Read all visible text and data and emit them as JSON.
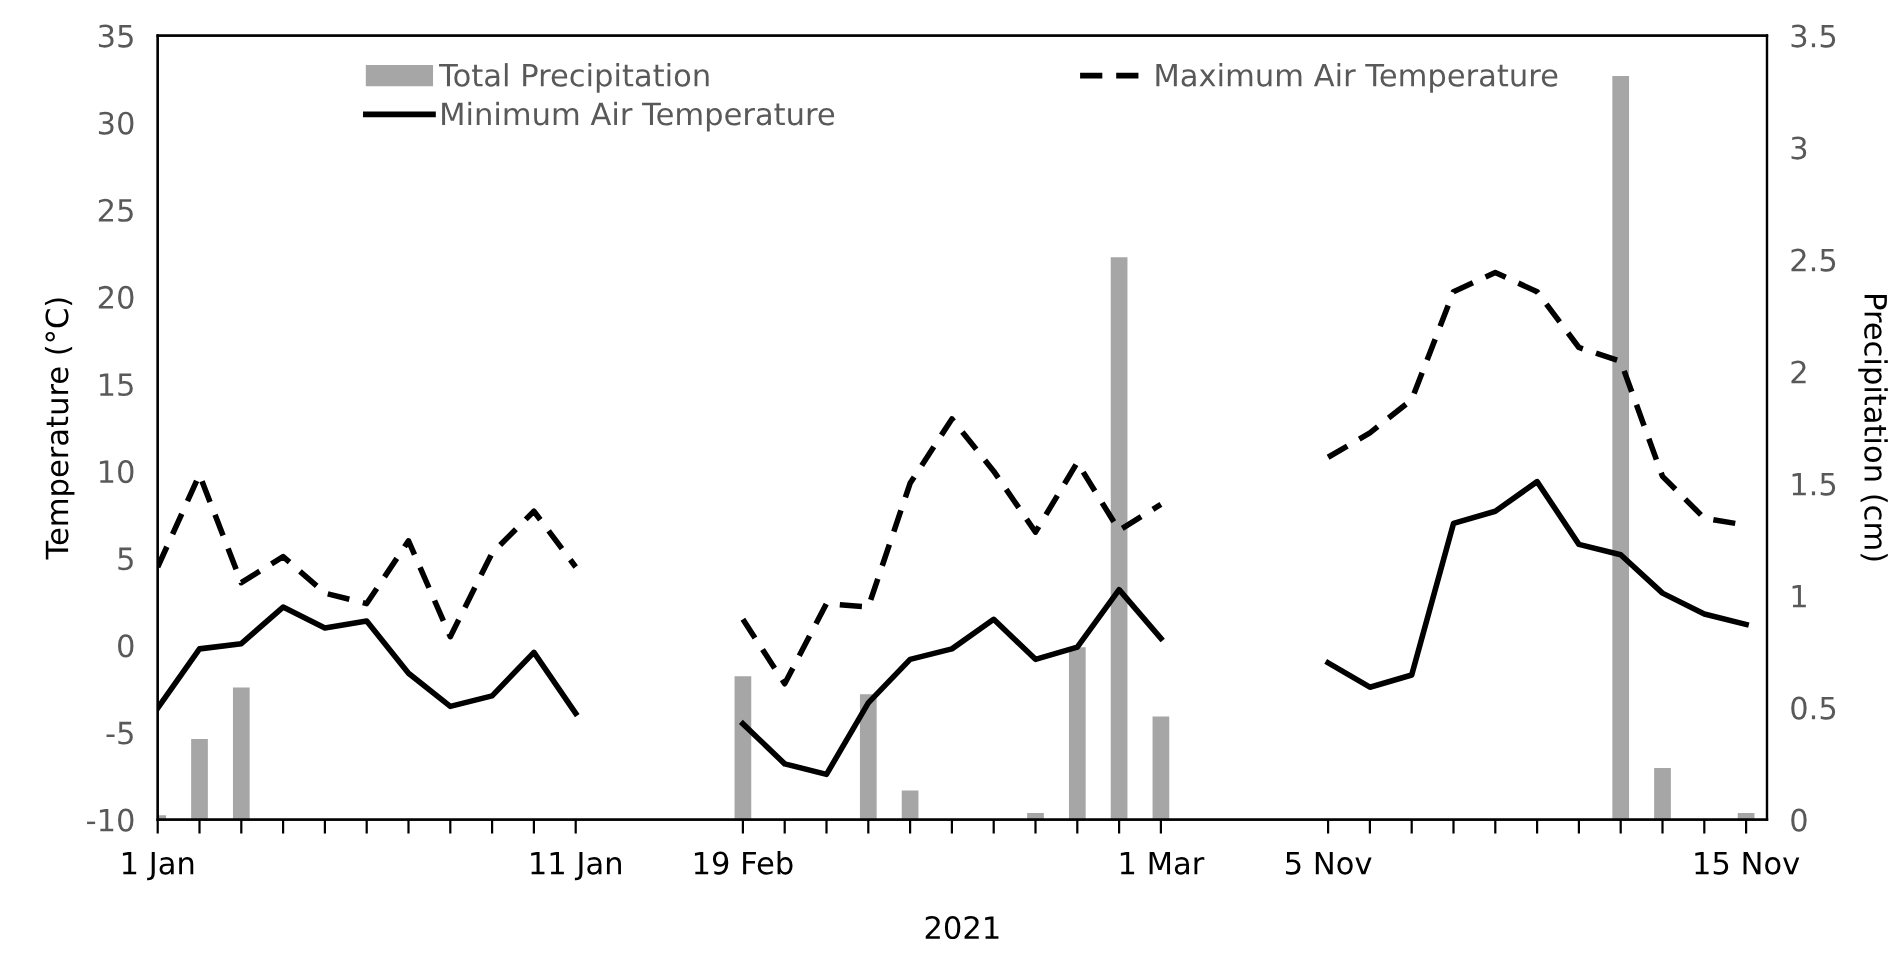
{
  "chart_data": {
    "type": "line",
    "categories": [
      "1 Jan",
      null,
      null,
      null,
      null,
      null,
      null,
      null,
      null,
      null,
      "11 Jan",
      null,
      null,
      null,
      "19 Feb",
      null,
      null,
      null,
      null,
      null,
      null,
      null,
      null,
      null,
      "1 Mar",
      null,
      null,
      null,
      "5 Nov",
      null,
      null,
      null,
      null,
      null,
      null,
      null,
      null,
      null,
      "15 Nov"
    ],
    "xlabel": "2021",
    "ylabel": "Temperature (°C)",
    "y2label": "Precipitation (cm)",
    "ylim": [
      -10,
      35
    ],
    "yticks": [
      -10,
      -5,
      0,
      5,
      10,
      15,
      20,
      25,
      30,
      35
    ],
    "y2lim": [
      0,
      3.5
    ],
    "y2ticks": [
      0,
      0.5,
      1,
      1.5,
      2,
      2.5,
      3,
      3.5
    ],
    "legend": "top",
    "grid": false,
    "series": [
      {
        "name": "Total Precipitation",
        "type": "bar",
        "axis": "y2",
        "color": "#a6a6a6",
        "values": [
          0.02,
          0.36,
          0.59,
          0,
          0,
          0,
          0,
          0,
          0,
          0,
          0,
          null,
          null,
          null,
          0.64,
          0,
          0,
          0.56,
          0.13,
          0,
          0,
          0.03,
          0.77,
          2.51,
          0.46,
          null,
          null,
          null,
          0,
          0,
          0,
          0,
          0,
          0,
          0,
          3.32,
          0.23,
          0,
          0.03
        ]
      },
      {
        "name": "Maximum Air Temperature",
        "line_style": "dashed",
        "color": "#000000",
        "values": [
          4.5,
          9.8,
          3.6,
          5.1,
          3.0,
          2.4,
          6.0,
          0.5,
          5.3,
          7.7,
          4.5,
          null,
          null,
          null,
          1.5,
          -2.2,
          2.4,
          2.2,
          9.3,
          13.0,
          10.0,
          6.5,
          10.5,
          6.6,
          8.1,
          null,
          null,
          null,
          10.8,
          12.2,
          14.1,
          20.3,
          21.4,
          20.3,
          17.1,
          16.3,
          9.7,
          7.3,
          6.9
        ]
      },
      {
        "name": "Minimum Air Temperature",
        "line_style": "solid",
        "color": "#000000",
        "values": [
          -3.6,
          -0.2,
          0.1,
          2.2,
          1.0,
          1.4,
          -1.6,
          -3.5,
          -2.9,
          -0.4,
          -3.9,
          null,
          null,
          null,
          -4.5,
          -6.8,
          -7.4,
          -3.3,
          -0.8,
          -0.2,
          1.5,
          -0.8,
          -0.1,
          3.2,
          0.4,
          null,
          null,
          null,
          -1.0,
          -2.4,
          -1.7,
          7.0,
          7.7,
          9.4,
          5.8,
          5.2,
          3.0,
          1.8,
          1.2
        ]
      }
    ]
  }
}
